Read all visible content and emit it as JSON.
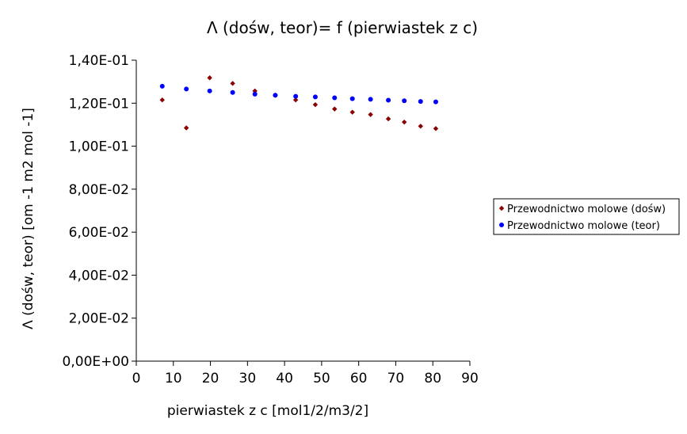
{
  "chart_data": {
    "type": "scatter",
    "title": "Λ (dośw, teor)= f (pierwiastek z c)",
    "xlabel": "pierwiastek z c [mol1/2/m3/2]",
    "ylabel": "Λ (dośw, teor) [om -1 m2 mol -1]",
    "xlim": [
      0,
      90
    ],
    "ylim": [
      0,
      0.14
    ],
    "x_ticks": [
      "0",
      "10",
      "20",
      "30",
      "40",
      "50",
      "60",
      "70",
      "80",
      "90"
    ],
    "x_tick_values": [
      0,
      10,
      20,
      30,
      40,
      50,
      60,
      70,
      80,
      90
    ],
    "y_ticks": [
      "0,00E+00",
      "2,00E-02",
      "4,00E-02",
      "6,00E-02",
      "8,00E-02",
      "1,00E-01",
      "1,20E-01",
      "1,40E-01"
    ],
    "y_tick_values": [
      0,
      0.02,
      0.04,
      0.06,
      0.08,
      0.1,
      0.12,
      0.14
    ],
    "grid": false,
    "legend_position": "right",
    "series": [
      {
        "name": "Przewodnictwo molowe (dośw)",
        "color": "#8b0000",
        "marker": "diamond",
        "x": [
          7.0,
          13.5,
          19.8,
          26.0,
          32.0,
          37.5,
          43.0,
          48.3,
          53.5,
          58.3,
          63.2,
          68.0,
          72.3,
          76.7,
          80.8
        ],
        "y": [
          0.1215,
          0.1085,
          0.1318,
          0.1292,
          0.1257,
          0.1237,
          0.1215,
          0.1193,
          0.1173,
          0.1158,
          0.1147,
          0.1127,
          0.1112,
          0.1093,
          0.1082
        ]
      },
      {
        "name": "Przewodnictwo molowe (teor)",
        "color": "#0000ff",
        "marker": "circle",
        "x": [
          7.0,
          13.5,
          19.8,
          26.0,
          32.0,
          37.5,
          43.0,
          48.3,
          53.5,
          58.3,
          63.2,
          68.0,
          72.3,
          76.7,
          80.8
        ],
        "y": [
          0.1279,
          0.1266,
          0.1257,
          0.125,
          0.1242,
          0.1237,
          0.1232,
          0.1229,
          0.1225,
          0.1221,
          0.1218,
          0.1214,
          0.1211,
          0.1208,
          0.1206
        ]
      }
    ]
  }
}
